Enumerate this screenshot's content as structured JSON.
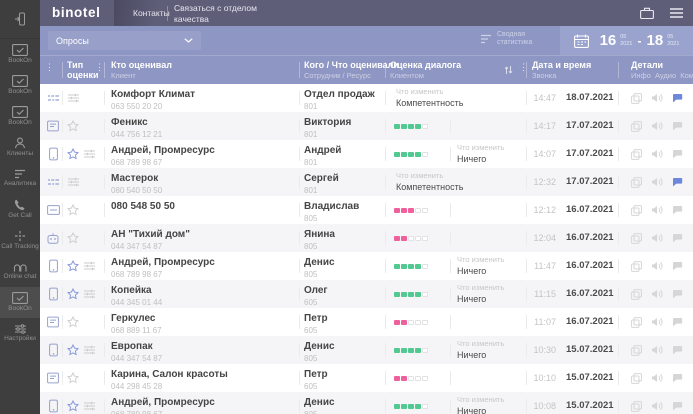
{
  "app": {
    "logo": "binotel"
  },
  "topbar": {
    "nav": [
      {
        "label": "Контакты"
      },
      {
        "label": "Связаться с отделом качества"
      }
    ],
    "icons": [
      "briefcase-icon",
      "menu-icon"
    ]
  },
  "toolbar": {
    "filter": {
      "value": "Опросы"
    },
    "summary_stats": "Сводная статистика",
    "date_range": {
      "from": {
        "day": "16",
        "month": "05",
        "year": "2021"
      },
      "separator": "-",
      "to": {
        "day": "18",
        "month": "05",
        "year": "2021"
      }
    }
  },
  "sidebar": {
    "dock_icon": "dock-icon",
    "items": [
      {
        "id": "bookon",
        "label": "BookOn",
        "active": false
      },
      {
        "id": "bookon",
        "label": "BookOn",
        "active": false
      },
      {
        "id": "bookon",
        "label": "BookOn",
        "active": false
      },
      {
        "id": "clients",
        "label": "Клиенты",
        "active": false
      },
      {
        "id": "analytics",
        "label": "Аналитика",
        "active": false
      },
      {
        "id": "getcall",
        "label": "Get Call",
        "active": false
      },
      {
        "id": "calltracking",
        "label": "Call Tracking",
        "active": false
      },
      {
        "id": "onlinechat",
        "label": "Online chat",
        "active": false
      },
      {
        "id": "bookon",
        "label": "BookOn",
        "active": true
      },
      {
        "id": "settings",
        "label": "Настройки",
        "active": false
      }
    ]
  },
  "table": {
    "header": {
      "type": {
        "title": "Тип оценки"
      },
      "who": {
        "title": "Кто оценивал",
        "sub": "Клиент"
      },
      "whom": {
        "title": "Кого / Что оценивали",
        "sub": "Сотрудник / Ресурс"
      },
      "rating": {
        "title": "Оценка диалога",
        "sub": "Клиентом"
      },
      "datetime": {
        "title": "Дата и время",
        "sub": "Звонка"
      },
      "details": {
        "title": "Детали",
        "sub": "Инфо Аудио Коммент."
      }
    },
    "change_label": "Что изменить",
    "rows": [
      {
        "source": "web",
        "type": "nps",
        "who": "Комфорт Климат",
        "who_sub": "063 550 20 20",
        "whom": "Отдел продаж",
        "whom_sub": "801",
        "rating": null,
        "change": "Компетентность",
        "change_pos": "left",
        "time": "14:47",
        "date": "18.07.2021",
        "comment": true
      },
      {
        "source": "widget",
        "type": "star",
        "who": "Феникс",
        "who_sub": "044 756 12 21",
        "whom": "Виктория",
        "whom_sub": "801",
        "rating": {
          "color": "green",
          "value": 4,
          "max": 5
        },
        "change": null,
        "change_pos": null,
        "time": "14:17",
        "date": "17.07.2021",
        "comment": false
      },
      {
        "source": "mobile",
        "type": "star_nps",
        "who": "Андрей, Промресурс",
        "who_sub": "068 789 98 67",
        "whom": "Андрей",
        "whom_sub": "801",
        "rating": {
          "color": "green",
          "value": 4,
          "max": 5
        },
        "change": "Ничего",
        "change_pos": "right",
        "time": "14:07",
        "date": "17.07.2021",
        "comment": false
      },
      {
        "source": "web",
        "type": "nps",
        "who": "Мастерок",
        "who_sub": "080 540 50 50",
        "whom": "Сергей",
        "whom_sub": "801",
        "rating": null,
        "change": "Компетентность",
        "change_pos": "left",
        "time": "12:32",
        "date": "17.07.2021",
        "comment": true
      },
      {
        "source": "card",
        "type": "star",
        "who": "080 548 50 50",
        "who_sub": "",
        "whom": "Владислав",
        "whom_sub": "805",
        "rating": {
          "color": "pink",
          "value": 3,
          "max": 5
        },
        "change": null,
        "change_pos": null,
        "time": "12:12",
        "date": "16.07.2021",
        "comment": false
      },
      {
        "source": "bot",
        "type": "star",
        "who": "АН \"Тихий дом\"",
        "who_sub": "044 347 54 87",
        "whom": "Янина",
        "whom_sub": "805",
        "rating": {
          "color": "pink",
          "value": 2,
          "max": 5
        },
        "change": null,
        "change_pos": null,
        "time": "12:04",
        "date": "16.07.2021",
        "comment": false
      },
      {
        "source": "mobile",
        "type": "star_nps",
        "who": "Андрей, Промресурс",
        "who_sub": "068 789 98 67",
        "whom": "Денис",
        "whom_sub": "805",
        "rating": {
          "color": "green",
          "value": 4,
          "max": 5
        },
        "change": "Ничего",
        "change_pos": "right",
        "time": "11:47",
        "date": "16.07.2021",
        "comment": false
      },
      {
        "source": "mobile",
        "type": "star_nps",
        "who": "Копейка",
        "who_sub": "044 345 01 44",
        "whom": "Олег",
        "whom_sub": "605",
        "rating": {
          "color": "green",
          "value": 4,
          "max": 5
        },
        "change": "Ничего",
        "change_pos": "right",
        "time": "11:15",
        "date": "16.07.2021",
        "comment": false
      },
      {
        "source": "widget",
        "type": "star",
        "who": "Геркулес",
        "who_sub": "068 889 11 67",
        "whom": "Петр",
        "whom_sub": "605",
        "rating": {
          "color": "pink",
          "value": 2,
          "max": 5
        },
        "change": null,
        "change_pos": null,
        "time": "11:07",
        "date": "16.07.2021",
        "comment": false
      },
      {
        "source": "mobile",
        "type": "star_nps",
        "who": "Европак",
        "who_sub": "044 347 54 87",
        "whom": "Денис",
        "whom_sub": "805",
        "rating": {
          "color": "green",
          "value": 4,
          "max": 5
        },
        "change": "Ничего",
        "change_pos": "right",
        "time": "10:30",
        "date": "15.07.2021",
        "comment": false
      },
      {
        "source": "widget",
        "type": "star",
        "who": "Карина, Салон красоты",
        "who_sub": "044 298 45 28",
        "whom": "Петр",
        "whom_sub": "605",
        "rating": {
          "color": "pink",
          "value": 2,
          "max": 5
        },
        "change": null,
        "change_pos": null,
        "time": "10:10",
        "date": "15.07.2021",
        "comment": false
      },
      {
        "source": "mobile",
        "type": "star_nps",
        "who": "Андрей, Промресурс",
        "who_sub": "068 789 98 67",
        "whom": "Денис",
        "whom_sub": "805",
        "rating": {
          "color": "green",
          "value": 4,
          "max": 5
        },
        "change": "Ничего",
        "change_pos": "right",
        "time": "10:08",
        "date": "15.07.2021",
        "comment": false
      }
    ]
  },
  "icons": {
    "source_types": [
      "web-icon",
      "widget-icon",
      "mobile-icon",
      "card-icon",
      "bot-icon"
    ],
    "rating_types": [
      "star-icon",
      "sliders-icon"
    ],
    "details": [
      "info-icon",
      "audio-icon",
      "comment-icon"
    ]
  },
  "colors": {
    "green": "#52c990",
    "pink": "#f0609d",
    "accent_blue": "#7e93d8",
    "topbar": "#5f5e78",
    "toolbar": "#8e96c3"
  }
}
